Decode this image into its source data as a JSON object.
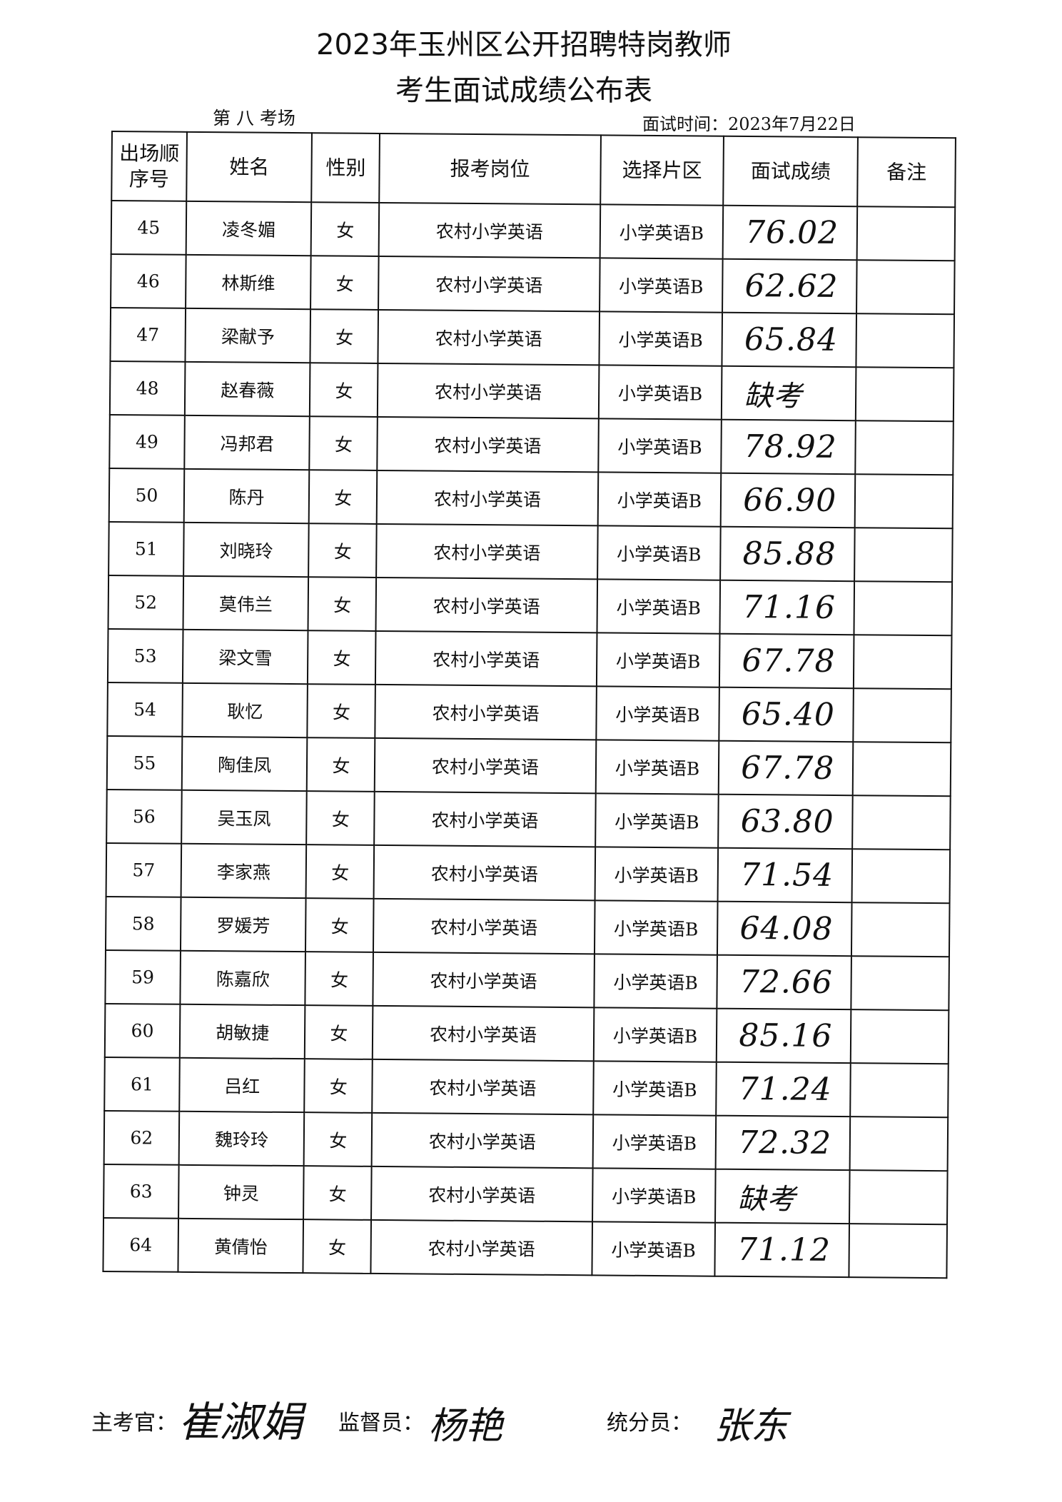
{
  "header": {
    "title_line1": "2023年玉州区公开招聘特岗教师",
    "title_line2": "考生面试成绩公布表",
    "exam_room": "第 八 考场",
    "interview_date": "面试时间：2023年7月22日"
  },
  "table": {
    "columns": [
      "出场顺序号",
      "姓名",
      "性别",
      "报考岗位",
      "选择片区",
      "面试成绩",
      "备注"
    ],
    "rows": [
      {
        "no": "45",
        "name": "凌冬媚",
        "gender": "女",
        "position": "农村小学英语",
        "area": "小学英语B",
        "score": "76.02",
        "note": ""
      },
      {
        "no": "46",
        "name": "林斯维",
        "gender": "女",
        "position": "农村小学英语",
        "area": "小学英语B",
        "score": "62.62",
        "note": ""
      },
      {
        "no": "47",
        "name": "梁献予",
        "gender": "女",
        "position": "农村小学英语",
        "area": "小学英语B",
        "score": "65.84",
        "note": ""
      },
      {
        "no": "48",
        "name": "赵春薇",
        "gender": "女",
        "position": "农村小学英语",
        "area": "小学英语B",
        "score": "缺考",
        "note": ""
      },
      {
        "no": "49",
        "name": "冯邦君",
        "gender": "女",
        "position": "农村小学英语",
        "area": "小学英语B",
        "score": "78.92",
        "note": ""
      },
      {
        "no": "50",
        "name": "陈丹",
        "gender": "女",
        "position": "农村小学英语",
        "area": "小学英语B",
        "score": "66.90",
        "note": ""
      },
      {
        "no": "51",
        "name": "刘晓玲",
        "gender": "女",
        "position": "农村小学英语",
        "area": "小学英语B",
        "score": "85.88",
        "note": ""
      },
      {
        "no": "52",
        "name": "莫伟兰",
        "gender": "女",
        "position": "农村小学英语",
        "area": "小学英语B",
        "score": "71.16",
        "note": ""
      },
      {
        "no": "53",
        "name": "梁文雪",
        "gender": "女",
        "position": "农村小学英语",
        "area": "小学英语B",
        "score": "67.78",
        "note": ""
      },
      {
        "no": "54",
        "name": "耿忆",
        "gender": "女",
        "position": "农村小学英语",
        "area": "小学英语B",
        "score": "65.40",
        "note": ""
      },
      {
        "no": "55",
        "name": "陶佳凤",
        "gender": "女",
        "position": "农村小学英语",
        "area": "小学英语B",
        "score": "67.78",
        "note": ""
      },
      {
        "no": "56",
        "name": "吴玉凤",
        "gender": "女",
        "position": "农村小学英语",
        "area": "小学英语B",
        "score": "63.80",
        "note": ""
      },
      {
        "no": "57",
        "name": "李家燕",
        "gender": "女",
        "position": "农村小学英语",
        "area": "小学英语B",
        "score": "71.54",
        "note": ""
      },
      {
        "no": "58",
        "name": "罗媛芳",
        "gender": "女",
        "position": "农村小学英语",
        "area": "小学英语B",
        "score": "64.08",
        "note": ""
      },
      {
        "no": "59",
        "name": "陈嘉欣",
        "gender": "女",
        "position": "农村小学英语",
        "area": "小学英语B",
        "score": "72.66",
        "note": ""
      },
      {
        "no": "60",
        "name": "胡敏捷",
        "gender": "女",
        "position": "农村小学英语",
        "area": "小学英语B",
        "score": "85.16",
        "note": ""
      },
      {
        "no": "61",
        "name": "吕红",
        "gender": "女",
        "position": "农村小学英语",
        "area": "小学英语B",
        "score": "71.24",
        "note": ""
      },
      {
        "no": "62",
        "name": "魏玲玲",
        "gender": "女",
        "position": "农村小学英语",
        "area": "小学英语B",
        "score": "72.32",
        "note": ""
      },
      {
        "no": "63",
        "name": "钟灵",
        "gender": "女",
        "position": "农村小学英语",
        "area": "小学英语B",
        "score": "缺考",
        "note": ""
      },
      {
        "no": "64",
        "name": "黄倩怡",
        "gender": "女",
        "position": "农村小学英语",
        "area": "小学英语B",
        "score": "71.12",
        "note": ""
      }
    ]
  },
  "footer": {
    "chief_examiner_label": "主考官：",
    "chief_examiner_signature": "崔淑娟",
    "supervisor_label": "监督员：",
    "supervisor_signature": "杨艳",
    "scorer_label": "统分员：",
    "scorer_signature": "张东"
  }
}
